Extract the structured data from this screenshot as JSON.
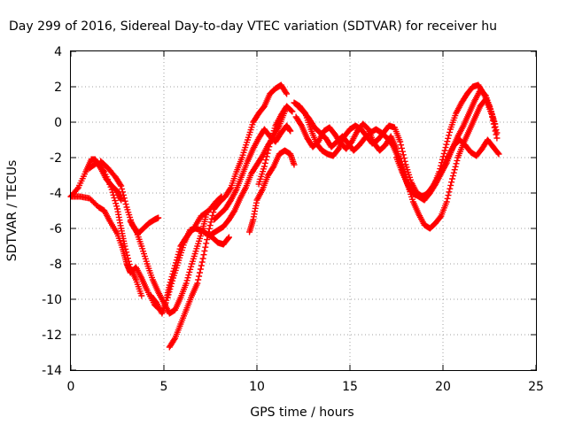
{
  "chart_data": {
    "type": "scatter",
    "title": "Day 299 of 2016, Sidereal Day-to-day VTEC variation (SDTVAR) for receiver hu",
    "xlabel": "GPS time / hours",
    "ylabel": "SDTVAR / TECUs",
    "xlim": [
      0,
      25
    ],
    "ylim": [
      -14,
      4
    ],
    "xticks": [
      0,
      5,
      10,
      15,
      20,
      25
    ],
    "yticks": [
      -14,
      -12,
      -10,
      -8,
      -6,
      -4,
      -2,
      0,
      2,
      4
    ],
    "grid": true,
    "legend": "none",
    "marker": "plus",
    "color": "#ff0000",
    "series": [
      {
        "x": [
          0,
          0.4,
          0.8,
          1.1,
          1.3,
          1.6,
          1.9,
          2.2,
          2.5,
          2.7
        ],
        "y": [
          -4.2,
          -3.7,
          -2.8,
          -2.1,
          -2.1,
          -2.6,
          -3.2,
          -3.6,
          -3.9,
          -4.4
        ]
      },
      {
        "x": [
          0,
          0.5,
          1.0,
          1.5,
          1.8,
          2.1,
          2.5,
          2.8,
          3.0,
          3.2,
          3.5,
          3.8,
          4.1,
          4.5,
          4.7
        ],
        "y": [
          -4.2,
          -4.2,
          -4.3,
          -4.8,
          -5.0,
          -5.6,
          -6.3,
          -7.2,
          -8.0,
          -8.5,
          -8.2,
          -8.8,
          -9.5,
          -10.3,
          -10.5
        ]
      },
      {
        "x": [
          1.0,
          1.4,
          1.8,
          2.2,
          2.5,
          2.7,
          2.9,
          3.2,
          3.5,
          3.8
        ],
        "y": [
          -2.6,
          -2.3,
          -2.8,
          -3.8,
          -4.9,
          -6.0,
          -7.0,
          -8.2,
          -8.9,
          -9.8
        ]
      },
      {
        "x": [
          1.6,
          2.0,
          2.4,
          2.7,
          3.0,
          3.3,
          3.6,
          3.9,
          4.2,
          4.5,
          4.7
        ],
        "y": [
          -2.2,
          -2.6,
          -3.1,
          -3.6,
          -4.8,
          -5.8,
          -6.3,
          -6.0,
          -5.7,
          -5.5,
          -5.4
        ]
      },
      {
        "x": [
          3.2,
          3.5,
          3.8,
          4.1,
          4.4,
          4.7,
          5.0,
          5.3,
          5.6,
          5.9,
          6.2,
          6.5,
          6.8,
          7.1,
          7.3
        ],
        "y": [
          -5.6,
          -6.1,
          -7.0,
          -8.0,
          -8.9,
          -9.6,
          -10.2,
          -10.8,
          -10.6,
          -9.9,
          -9.1,
          -8.0,
          -7.0,
          -6.0,
          -5.1
        ]
      },
      {
        "x": [
          4.3,
          4.6,
          4.9,
          5.1,
          5.3,
          5.6,
          5.9,
          6.2,
          6.6,
          7.0,
          7.4,
          7.8,
          8.1
        ],
        "y": [
          -9.8,
          -10.2,
          -10.8,
          -10.2,
          -9.2,
          -8.1,
          -7.0,
          -6.5,
          -6.0,
          -5.3,
          -5.0,
          -4.5,
          -4.2
        ]
      },
      {
        "x": [
          5.2,
          5.5,
          5.8,
          6.1,
          6.4,
          6.7,
          7.0,
          7.3,
          7.6,
          7.9,
          8.2,
          8.5
        ],
        "y": [
          -9.9,
          -8.8,
          -7.8,
          -6.8,
          -6.1,
          -6.0,
          -6.1,
          -6.3,
          -6.5,
          -6.8,
          -6.9,
          -6.5
        ]
      },
      {
        "x": [
          5.3,
          5.6,
          5.9,
          6.2,
          6.5,
          6.8,
          7.1,
          7.4,
          7.7,
          8.0,
          8.3,
          8.6,
          8.9,
          9.2,
          9.5,
          9.8,
          10.1,
          10.4,
          10.7,
          11.0,
          11.3,
          11.6
        ],
        "y": [
          -12.7,
          -12.2,
          -11.4,
          -10.6,
          -9.8,
          -9.1,
          -7.7,
          -6.2,
          -4.9,
          -4.5,
          -4.2,
          -3.7,
          -2.8,
          -2.0,
          -1.0,
          0.0,
          0.5,
          0.9,
          1.6,
          1.9,
          2.1,
          1.6
        ]
      },
      {
        "x": [
          7.6,
          7.9,
          8.2,
          8.5,
          8.8,
          9.1,
          9.4,
          9.7,
          10.0,
          10.3,
          10.6,
          10.9,
          11.2,
          11.5
        ],
        "y": [
          -6.3,
          -6.1,
          -5.9,
          -5.5,
          -5.0,
          -4.3,
          -3.7,
          -2.9,
          -2.4,
          -1.9,
          -1.3,
          -0.8,
          -0.2,
          0.6
        ]
      },
      {
        "x": [
          7.7,
          8.0,
          8.3,
          8.6,
          8.9,
          9.2,
          9.5,
          9.8,
          10.1,
          10.4,
          10.7,
          11.0,
          11.3,
          11.6,
          11.8
        ],
        "y": [
          -5.5,
          -5.2,
          -4.9,
          -4.4,
          -3.8,
          -3.0,
          -2.2,
          -1.5,
          -0.9,
          -0.4,
          -0.8,
          -1.1,
          -0.6,
          -0.2,
          -0.5
        ]
      },
      {
        "x": [
          9.6,
          9.8,
          10.0,
          10.3,
          10.6,
          10.9,
          11.2,
          11.5,
          11.8,
          12.0
        ],
        "y": [
          -6.2,
          -5.5,
          -4.4,
          -3.8,
          -3.0,
          -2.5,
          -1.8,
          -1.6,
          -1.8,
          -2.4
        ]
      },
      {
        "x": [
          10.1,
          10.4,
          10.7,
          11.0,
          11.3,
          11.6,
          11.9
        ],
        "y": [
          -3.5,
          -2.5,
          -1.2,
          -0.2,
          0.4,
          0.9,
          0.6
        ]
      },
      {
        "x": [
          12.0,
          12.3,
          12.6,
          12.9,
          13.2,
          13.5,
          13.8,
          14.1,
          14.4,
          14.7,
          15.0,
          15.3,
          15.6,
          15.9,
          16.2,
          16.5,
          16.8,
          17.1,
          17.4,
          17.7,
          18.0,
          18.3,
          18.6,
          18.9,
          19.2,
          19.5,
          19.8,
          20.1,
          20.4,
          20.7,
          21.0,
          21.3,
          21.6,
          21.9,
          22.2,
          22.5,
          22.8
        ],
        "y": [
          1.1,
          0.9,
          0.5,
          -0.4,
          -1.2,
          -1.6,
          -1.8,
          -1.9,
          -1.5,
          -0.8,
          -0.4,
          -0.2,
          -0.4,
          -0.8,
          -1.2,
          -1.0,
          -0.6,
          -0.2,
          -0.3,
          -1.1,
          -2.4,
          -3.4,
          -4.0,
          -4.2,
          -4.0,
          -3.6,
          -2.8,
          -1.6,
          -0.4,
          0.5,
          1.1,
          1.6,
          2.0,
          2.1,
          1.6,
          0.9,
          -0.1
        ]
      },
      {
        "x": [
          12.1,
          12.4,
          12.7,
          13.0,
          13.3,
          13.6,
          13.9,
          14.2,
          14.5,
          14.8,
          15.1,
          15.4,
          15.7,
          16.0,
          16.3,
          16.6,
          16.9,
          17.2,
          17.5,
          17.8,
          18.1,
          18.4,
          18.7,
          19.0,
          19.3,
          19.6,
          19.9,
          20.2,
          20.5,
          20.8,
          21.1,
          21.4,
          21.7,
          22.0,
          22.3,
          22.6,
          22.9
        ],
        "y": [
          0.3,
          -0.2,
          -0.9,
          -1.4,
          -1.1,
          -0.5,
          -0.3,
          -0.7,
          -1.2,
          -1.5,
          -1.1,
          -0.5,
          -0.1,
          -0.4,
          -1.2,
          -1.6,
          -1.3,
          -0.8,
          -1.5,
          -2.5,
          -3.5,
          -4.5,
          -5.2,
          -5.8,
          -6.0,
          -5.7,
          -5.3,
          -4.5,
          -3.2,
          -2.0,
          -1.2,
          -0.5,
          0.2,
          0.9,
          1.3,
          0.5,
          -0.9
        ]
      },
      {
        "x": [
          12.2,
          12.5,
          12.8,
          13.1,
          13.4,
          13.7,
          14.0,
          14.3,
          14.6,
          14.9,
          15.2,
          15.5,
          15.8,
          16.1,
          16.4,
          16.7,
          17.0,
          17.3,
          17.6,
          17.9,
          18.2,
          18.5,
          18.8,
          19.1,
          19.4,
          19.7,
          20.0,
          20.3,
          20.6,
          20.9,
          21.2,
          21.5,
          21.8,
          22.1,
          22.4,
          22.7,
          23.0
        ],
        "y": [
          0.9,
          0.6,
          0.2,
          -0.3,
          -0.6,
          -0.9,
          -1.4,
          -1.1,
          -0.8,
          -1.2,
          -1.6,
          -1.3,
          -0.9,
          -0.6,
          -0.4,
          -0.6,
          -0.9,
          -1.3,
          -2.0,
          -3.0,
          -3.8,
          -4.1,
          -4.2,
          -4.1,
          -3.7,
          -3.2,
          -2.6,
          -1.9,
          -1.3,
          -1.0,
          -1.3,
          -1.7,
          -1.9,
          -1.5,
          -1.0,
          -1.4,
          -1.8
        ]
      },
      {
        "x": [
          17.5,
          17.8,
          18.1,
          18.4,
          18.7,
          19.0,
          19.3,
          19.6,
          19.9,
          20.2,
          20.5,
          20.8,
          21.1,
          21.4,
          21.7,
          22.0,
          22.3,
          22.6,
          22.9
        ],
        "y": [
          -2.0,
          -2.8,
          -3.5,
          -4.0,
          -4.2,
          -4.4,
          -4.0,
          -3.5,
          -2.9,
          -2.3,
          -1.5,
          -0.8,
          -0.2,
          0.5,
          1.2,
          1.8,
          1.5,
          0.6,
          -0.6
        ]
      }
    ]
  }
}
